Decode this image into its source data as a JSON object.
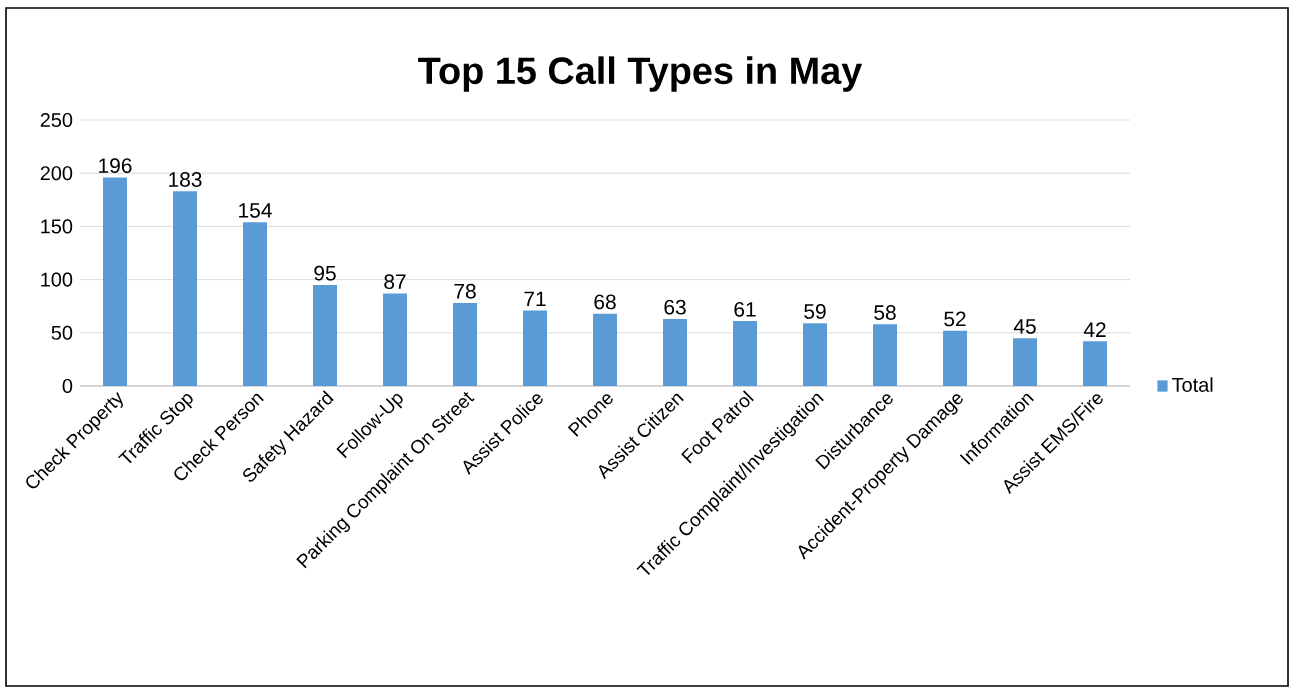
{
  "chart_data": {
    "type": "bar",
    "title": "Top 15 Call Types in May",
    "categories": [
      "Check Property",
      "Traffic Stop",
      "Check Person",
      "Safety Hazard",
      "Follow-Up",
      "Parking Complaint On Street",
      "Assist Police",
      "Phone",
      "Assist Citizen",
      "Foot Patrol",
      "Traffic Complaint/Investigation",
      "Disturbance",
      "Accident-Property Damage",
      "Information",
      "Assist EMS/Fire"
    ],
    "series": [
      {
        "name": "Total",
        "color": "#5b9bd5",
        "values": [
          196,
          183,
          154,
          95,
          87,
          78,
          71,
          68,
          63,
          61,
          59,
          58,
          52,
          45,
          42
        ]
      }
    ],
    "ylim": [
      0,
      250
    ],
    "yticks": [
      0,
      50,
      100,
      150,
      200,
      250
    ],
    "grid": "y",
    "legend": "right",
    "data_labels": true
  }
}
